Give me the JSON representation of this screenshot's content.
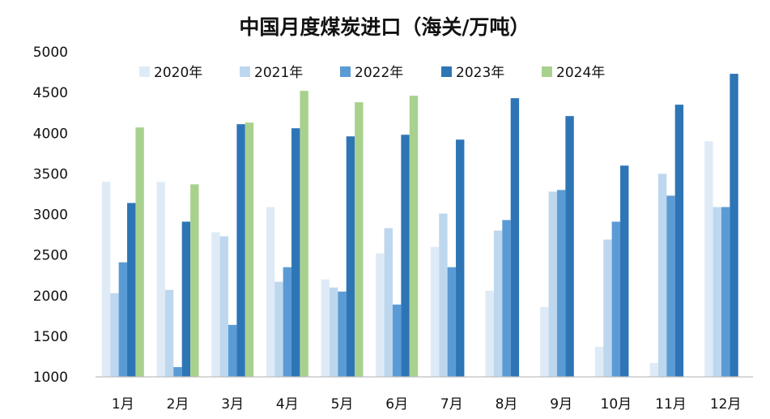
{
  "chart_data": {
    "type": "bar",
    "title": "中国月度煤炭进口（海关/万吨）",
    "categories": [
      "1月",
      "2月",
      "3月",
      "4月",
      "5月",
      "6月",
      "7月",
      "8月",
      "9月",
      "10月",
      "11月",
      "12月"
    ],
    "ylim": [
      1000,
      5000
    ],
    "yticks": [
      1000,
      1500,
      2000,
      2500,
      3000,
      3500,
      4000,
      4500,
      5000
    ],
    "grid": false,
    "legend_position": "top",
    "series": [
      {
        "name": "2020年",
        "color": "#deebf7",
        "values": [
          3400,
          3400,
          2780,
          3090,
          2200,
          2520,
          2600,
          2060,
          1860,
          1370,
          1170,
          3900
        ]
      },
      {
        "name": "2021年",
        "color": "#bdd7ee",
        "values": [
          2030,
          2070,
          2730,
          2170,
          2100,
          2830,
          3010,
          2800,
          3280,
          2690,
          3500,
          3090
        ]
      },
      {
        "name": "2022年",
        "color": "#5b9bd5",
        "values": [
          2410,
          1120,
          1640,
          2350,
          2050,
          1890,
          2350,
          2930,
          3300,
          2910,
          3230,
          3090
        ]
      },
      {
        "name": "2023年",
        "color": "#2e75b6",
        "values": [
          3140,
          2910,
          4110,
          4060,
          3960,
          3980,
          3920,
          4430,
          4210,
          3600,
          4350,
          4730
        ]
      },
      {
        "name": "2024年",
        "color": "#a9d18e",
        "values": [
          4070,
          3370,
          4130,
          4520,
          4380,
          4460,
          null,
          null,
          null,
          null,
          null,
          null
        ]
      }
    ]
  }
}
